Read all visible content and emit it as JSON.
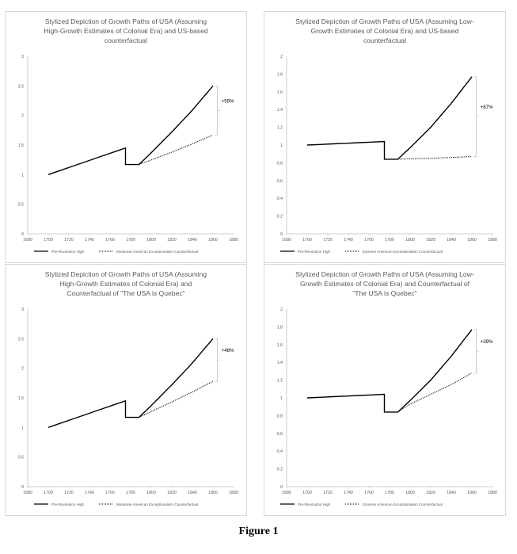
{
  "figure_caption": "Figure 1",
  "chart_data": [
    {
      "type": "line",
      "title": "Stylized Depiction of Growth Paths of USA (Assuming High-Growth Estimates of Colonial Era) and US-based counterfactual",
      "title_lines": [
        "Stylized Depiction of Growth Paths of USA (Assuming",
        "High-Growth Estimates of Colonial Era) and US-based",
        "counterfactual"
      ],
      "xlim": [
        1680,
        1880
      ],
      "ylim": [
        0,
        3
      ],
      "xticks": [
        "1680",
        "1700",
        "1720",
        "1740",
        "1760",
        "1780",
        "1800",
        "1820",
        "1840",
        "1860",
        "1880"
      ],
      "yticks": [
        "0",
        "0.5",
        "1",
        "1.5",
        "2",
        "2.5",
        "3"
      ],
      "grid": false,
      "legend_position": "bottom",
      "annotation": "+59%",
      "series": [
        {
          "name": "Pre-Revolution High",
          "style": "solid",
          "x": [
            1700,
            1775,
            1775,
            1788,
            1800,
            1820,
            1840,
            1860
          ],
          "y": [
            1.0,
            1.45,
            1.17,
            1.17,
            1.37,
            1.72,
            2.09,
            2.5
          ]
        },
        {
          "name": "Moderate American Exceptionalism Counterfactual",
          "style": "dotted",
          "x": [
            1788,
            1800,
            1820,
            1840,
            1860
          ],
          "y": [
            1.17,
            1.25,
            1.38,
            1.52,
            1.67
          ]
        }
      ]
    },
    {
      "type": "line",
      "title": "Stylized Depiction of Growth Paths of USA (Assuming Low-Growth Estimates of Colonial Era) and US-based counterfactual",
      "title_lines": [
        "Stylized Depiction of Growth Paths of USA (Assuming Low-",
        "Growth Estimates of Colonial Era) and US-based",
        "counterfactual"
      ],
      "xlim": [
        1680,
        1880
      ],
      "ylim": [
        0,
        2
      ],
      "xticks": [
        "1680",
        "1700",
        "1720",
        "1740",
        "1760",
        "1780",
        "1800",
        "1820",
        "1840",
        "1860",
        "1880"
      ],
      "yticks": [
        "0",
        "0.2",
        "0.4",
        "0.6",
        "0.8",
        "1",
        "1.2",
        "1.4",
        "1.6",
        "1.8",
        "2"
      ],
      "grid": false,
      "legend_position": "bottom",
      "annotation": "+87%",
      "series": [
        {
          "name": "Pre-Revolution High",
          "style": "solid",
          "x": [
            1700,
            1775,
            1775,
            1788,
            1800,
            1820,
            1840,
            1860
          ],
          "y": [
            1.0,
            1.04,
            0.84,
            0.84,
            0.97,
            1.2,
            1.47,
            1.77
          ]
        },
        {
          "name": "Extreme American Exceptionalism Counterfactual",
          "style": "dotted",
          "x": [
            1788,
            1800,
            1820,
            1840,
            1860
          ],
          "y": [
            0.84,
            0.845,
            0.85,
            0.86,
            0.87
          ]
        }
      ]
    },
    {
      "type": "line",
      "title": "Stylized Depiction of Growth Paths of USA (Assuming High-Growth Estimates of Colonial Era) and Counterfactual of \"The USA is Quebec\"",
      "title_lines": [
        "Stylized Depiction of Growth Paths of USA (Assuming",
        "High-Growth Estimates of Colonial Era) and",
        "Counterfactual of \"The USA is Quebec\""
      ],
      "xlim": [
        1680,
        1880
      ],
      "ylim": [
        0,
        3
      ],
      "xticks": [
        "1680",
        "1700",
        "1720",
        "1740",
        "1760",
        "1780",
        "1800",
        "1820",
        "1840",
        "1860",
        "1880"
      ],
      "yticks": [
        "0",
        "0.5",
        "1",
        "1.5",
        "2",
        "2.5",
        "3"
      ],
      "grid": false,
      "legend_position": "bottom",
      "annotation": "+48%",
      "series": [
        {
          "name": "Pre-Revolution High",
          "style": "solid",
          "x": [
            1700,
            1775,
            1775,
            1788,
            1800,
            1820,
            1840,
            1860
          ],
          "y": [
            1.0,
            1.45,
            1.17,
            1.17,
            1.37,
            1.72,
            2.09,
            2.5
          ]
        },
        {
          "name": "Moderate American Exceptionalism Counterfactual",
          "style": "dotted",
          "x": [
            1788,
            1800,
            1820,
            1840,
            1860
          ],
          "y": [
            1.17,
            1.27,
            1.43,
            1.6,
            1.78
          ]
        }
      ]
    },
    {
      "type": "line",
      "title": "Stylized Depiction of Growth Paths of USA (Assuming Low-Growth Estimates of Colonial Era) and Counterfactual of \"The USA is Quebec\"",
      "title_lines": [
        "Stylized Depiction of Growth Paths of USA (Assuming Low-",
        "Growth Estimates of Colonial Era) and Counterfactual of",
        "\"The USA is Quebec\""
      ],
      "xlim": [
        1680,
        1880
      ],
      "ylim": [
        0,
        2
      ],
      "xticks": [
        "1680",
        "1700",
        "1720",
        "1740",
        "1760",
        "1780",
        "1800",
        "1820",
        "1840",
        "1860",
        "1880"
      ],
      "yticks": [
        "0",
        "0.2",
        "0.4",
        "0.6",
        "0.8",
        "1",
        "1.2",
        "1.4",
        "1.6",
        "1.8",
        "2"
      ],
      "grid": false,
      "legend_position": "bottom",
      "annotation": "+39%",
      "series": [
        {
          "name": "Pre-Revolution High",
          "style": "solid",
          "x": [
            1700,
            1775,
            1775,
            1788,
            1800,
            1820,
            1840,
            1860
          ],
          "y": [
            1.0,
            1.04,
            0.84,
            0.84,
            0.97,
            1.2,
            1.47,
            1.77
          ]
        },
        {
          "name": "Extreme American Exceptionalism Counterfactual",
          "style": "dotted",
          "x": [
            1788,
            1800,
            1820,
            1840,
            1860
          ],
          "y": [
            0.84,
            0.93,
            1.04,
            1.15,
            1.28
          ]
        }
      ]
    }
  ]
}
